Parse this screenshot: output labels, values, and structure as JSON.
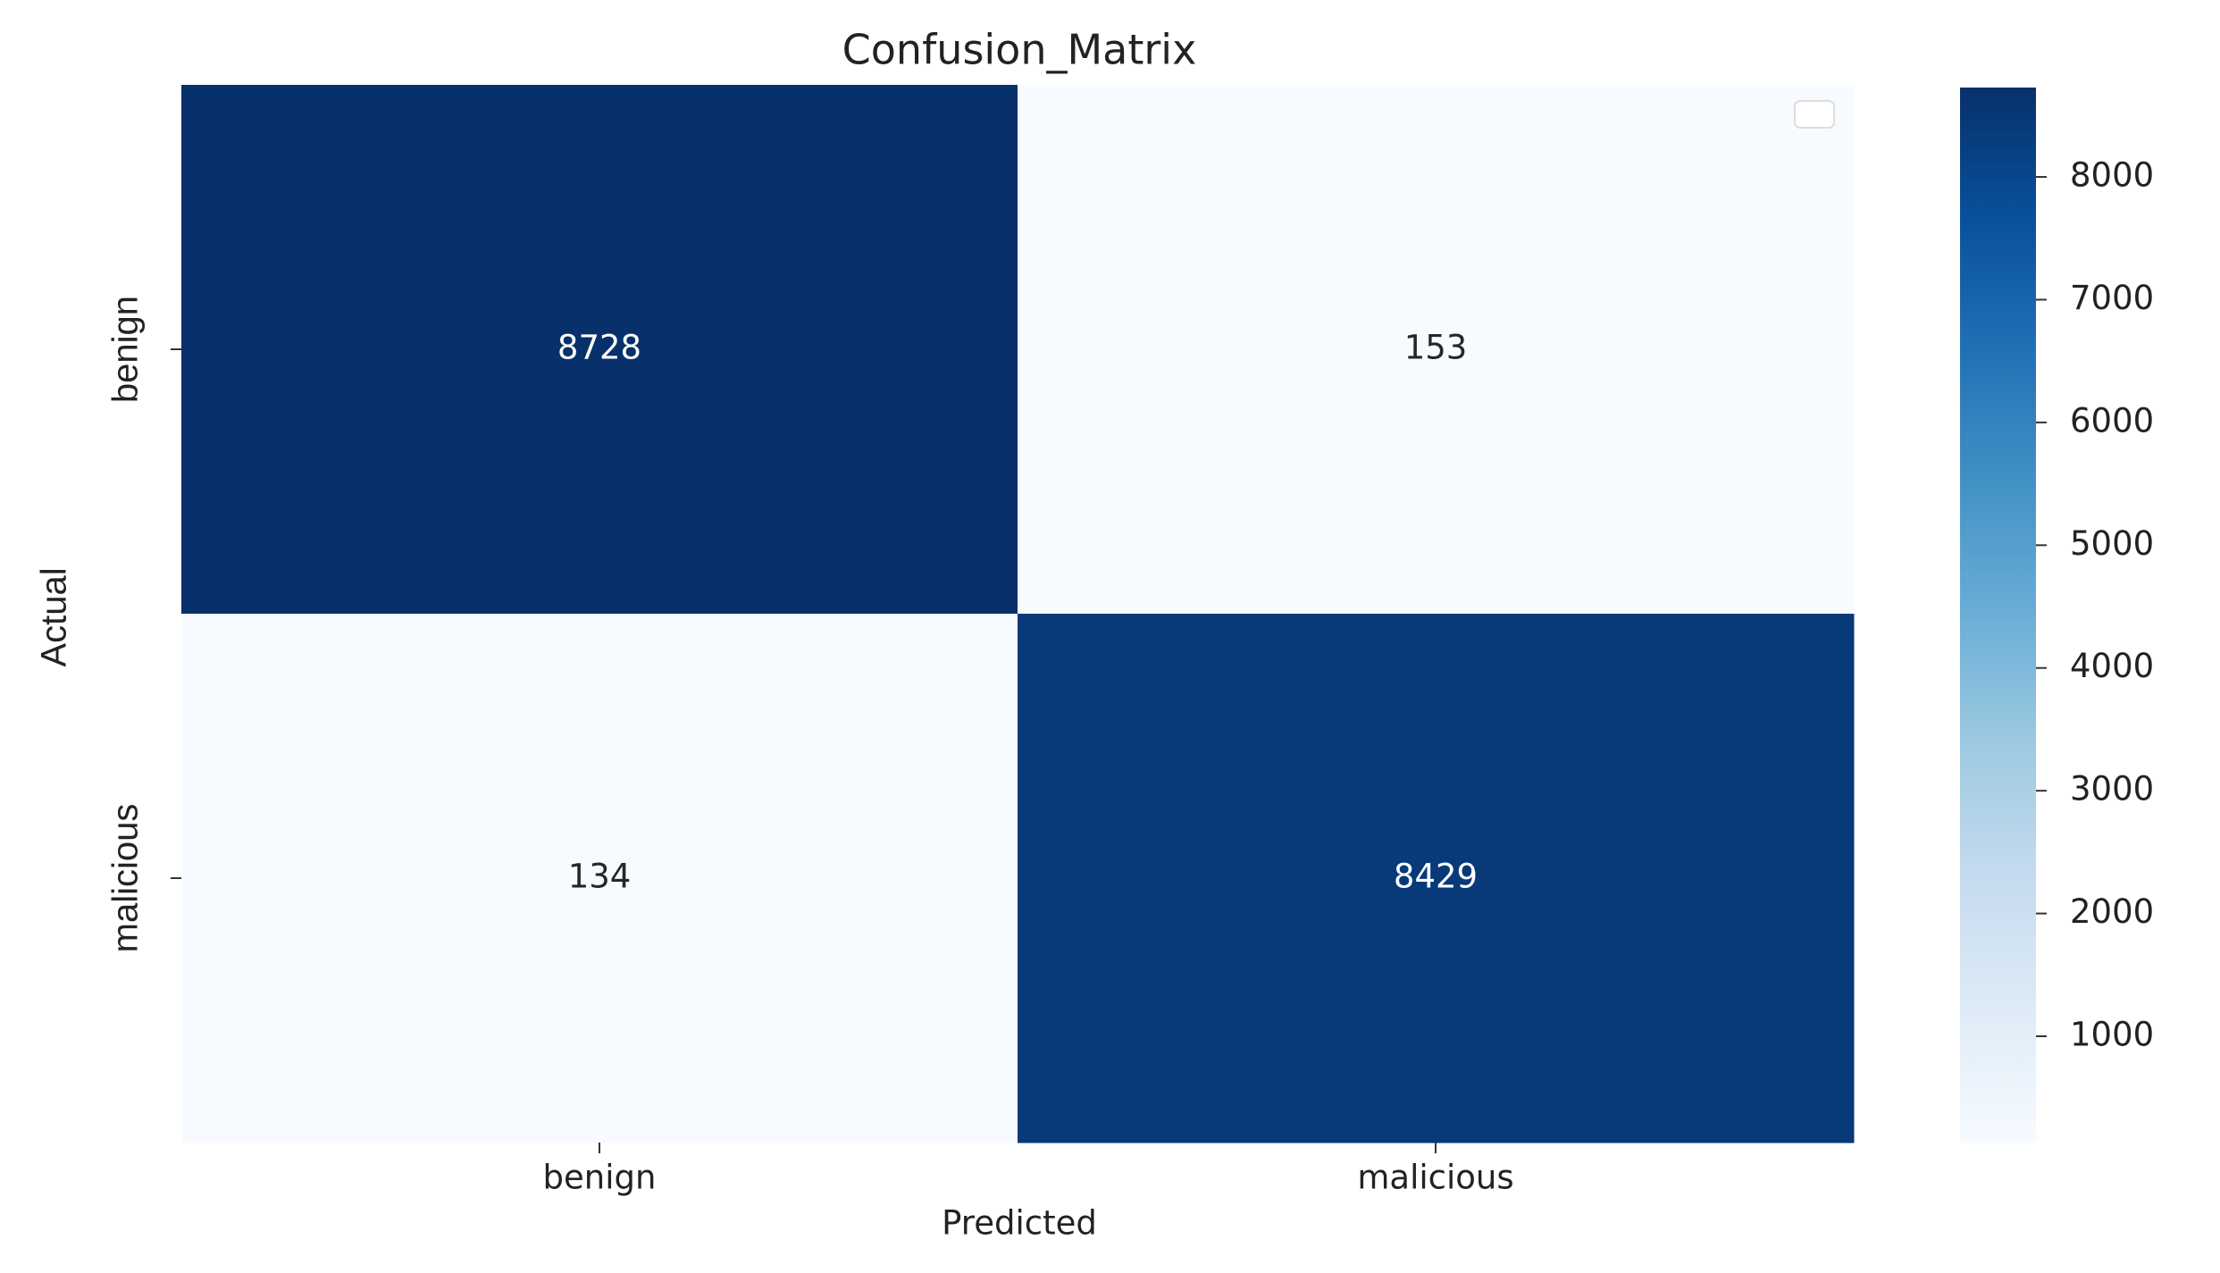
{
  "chart_data": {
    "type": "heatmap",
    "title": "Confusion_Matrix",
    "x_label": "Predicted",
    "y_label": "Actual",
    "x_categories": [
      "benign",
      "malicious"
    ],
    "y_categories": [
      "benign",
      "malicious"
    ],
    "values": [
      [
        8728,
        153
      ],
      [
        134,
        8429
      ]
    ],
    "colormap": [
      "#f7fbff",
      "#deebf7",
      "#c6dbef",
      "#9ecae1",
      "#6baed6",
      "#4292c6",
      "#2171b5",
      "#08519c",
      "#08306b"
    ],
    "clim": [
      134,
      8728
    ],
    "cticks": [
      1000,
      2000,
      3000,
      4000,
      5000,
      6000,
      7000,
      8000
    ]
  }
}
